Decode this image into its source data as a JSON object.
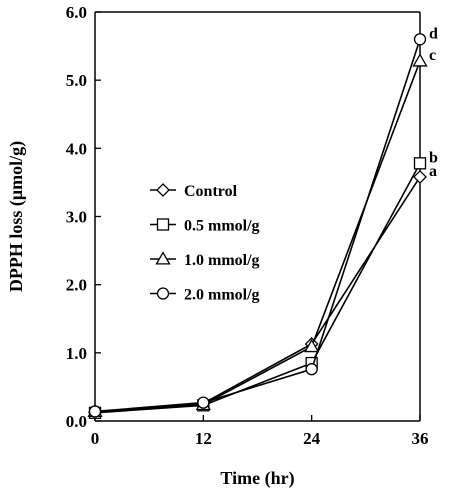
{
  "chart_data": {
    "type": "line",
    "title": "",
    "xlabel": "Time (hr)",
    "ylabel": "DPPH loss (μmol/g)",
    "x": [
      0,
      12,
      24,
      36
    ],
    "xlim": [
      0,
      36
    ],
    "ylim": [
      0,
      6
    ],
    "xticks": [
      "0",
      "12",
      "24",
      "36"
    ],
    "yticks": [
      "0.0",
      "1.0",
      "2.0",
      "3.0",
      "4.0",
      "5.0",
      "6.0"
    ],
    "grid": false,
    "legend_position": "left-center",
    "series": [
      {
        "name": "Control",
        "marker": "diamond",
        "values": [
          0.13,
          0.26,
          1.13,
          3.58
        ],
        "annotation": "a"
      },
      {
        "name": "0.5 mmol/g",
        "marker": "square",
        "values": [
          0.12,
          0.23,
          0.85,
          3.78
        ],
        "annotation": "b"
      },
      {
        "name": "1.0 mmol/g",
        "marker": "triangle",
        "values": [
          0.14,
          0.24,
          1.09,
          5.28
        ],
        "annotation": "c"
      },
      {
        "name": "2.0 mmol/g",
        "marker": "circle",
        "values": [
          0.14,
          0.27,
          0.76,
          5.6
        ],
        "annotation": "d"
      }
    ]
  }
}
